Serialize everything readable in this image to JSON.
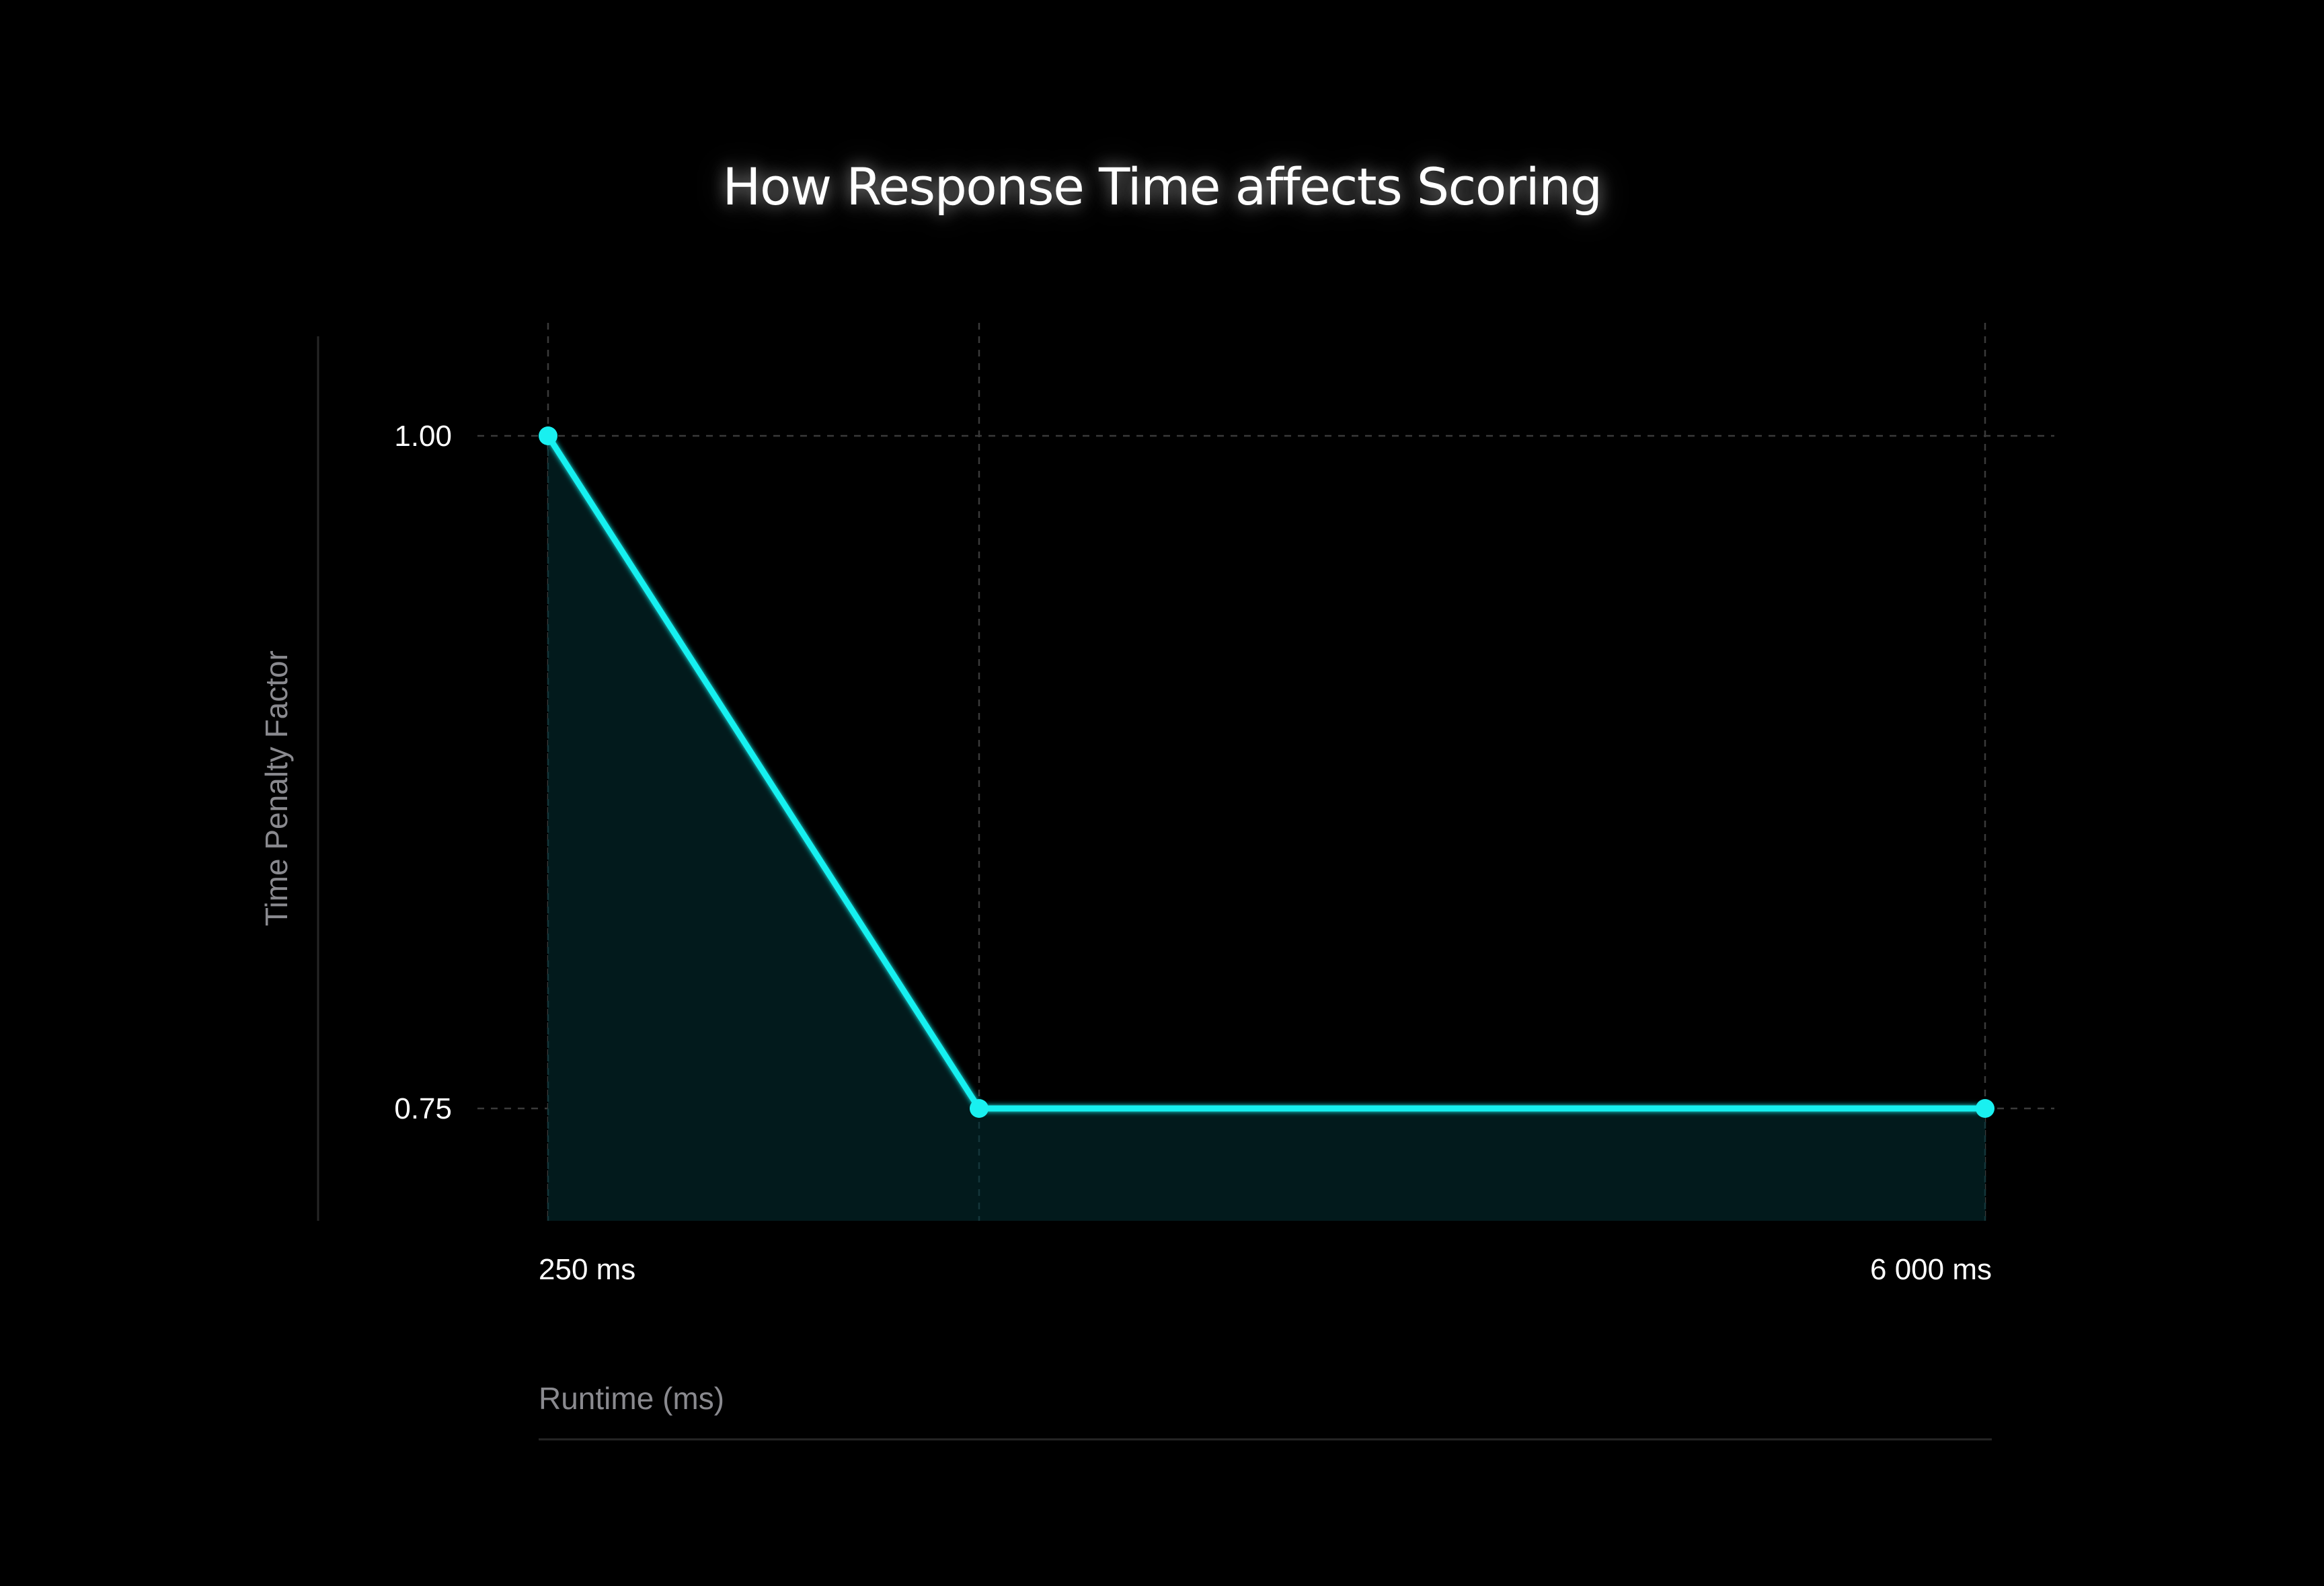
{
  "chart_data": {
    "type": "line",
    "title": "How Response Time affects Scoring",
    "xlabel": "Runtime (ms)",
    "ylabel": "Time Penalty Factor",
    "x": [
      250,
      1970,
      6000
    ],
    "series": [
      {
        "values": [
          1.0,
          0.75,
          0.75
        ]
      }
    ],
    "x_tick_labels": [
      {
        "value": 250,
        "label": "250 ms"
      },
      {
        "value": 6000,
        "label": "6 000 ms"
      }
    ],
    "y_tick_labels": [
      {
        "value": 1.0,
        "label": "1.00"
      },
      {
        "value": 0.75,
        "label": "0.75"
      }
    ],
    "xlim": [
      0,
      6270
    ],
    "ylim": [
      0.708,
      1.04
    ],
    "area_fill": true,
    "grid": true,
    "legend": "none",
    "colors": {
      "line": "#19f0f0",
      "area": "#021a1c",
      "grid": "#3a3a3a",
      "background": "#000000"
    }
  }
}
